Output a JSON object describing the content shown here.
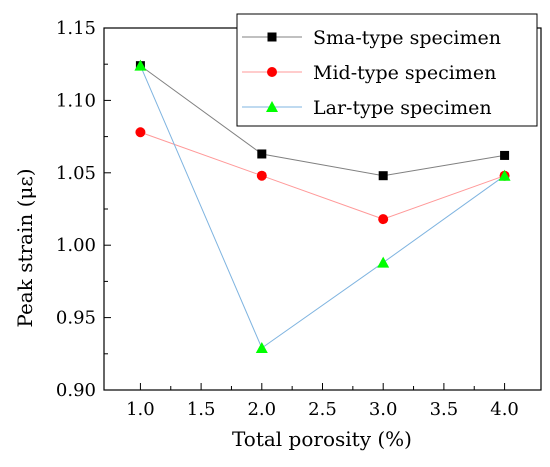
{
  "chart_data": {
    "type": "line",
    "title": "",
    "xlabel": "Total porosity (%)",
    "ylabel": "Peak strain (με)",
    "xlim": [
      0.7,
      4.3
    ],
    "ylim": [
      0.9,
      1.15
    ],
    "x_ticks": [
      "1.0",
      "1.5",
      "2.0",
      "2.5",
      "3.0",
      "3.5",
      "4.0"
    ],
    "y_ticks": [
      "0.90",
      "0.95",
      "1.00",
      "1.05",
      "1.10",
      "1.15"
    ],
    "x": [
      1.0,
      2.0,
      3.0,
      4.0
    ],
    "legend_position": "top-right",
    "grid": false,
    "series": [
      {
        "name": "Sma-type specimen",
        "values": [
          1.124,
          1.063,
          1.048,
          1.062
        ],
        "marker": "square",
        "color": "#000000",
        "line_color": "#808080"
      },
      {
        "name": "Mid-type specimen",
        "values": [
          1.078,
          1.048,
          1.018,
          1.048
        ],
        "marker": "circle",
        "color": "#ff0000",
        "line_color": "#ff9999"
      },
      {
        "name": "Lar-type specimen",
        "values": [
          1.124,
          0.929,
          0.988,
          1.048
        ],
        "marker": "triangle",
        "color": "#00ff00",
        "line_color": "#7fb4e0"
      }
    ]
  }
}
